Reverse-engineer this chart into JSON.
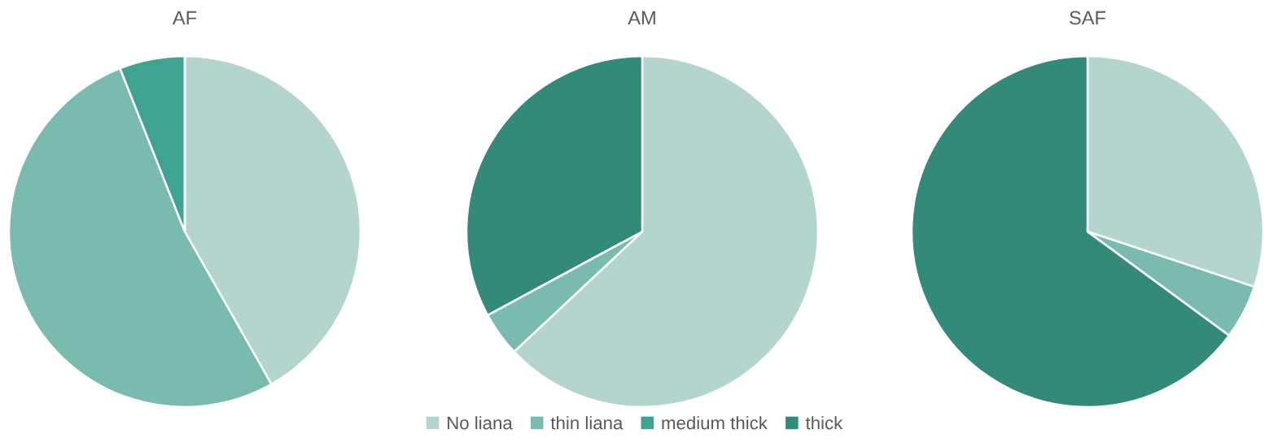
{
  "chart_data": [
    {
      "type": "pie",
      "title": "AF",
      "categories": [
        "No liana",
        "thin liana",
        "medium thick",
        "thick"
      ],
      "values": [
        41.8,
        52.2,
        6.0,
        0
      ],
      "colors": [
        "#b3d5ce",
        "#79bbae",
        "#3ea391",
        "#338a78"
      ],
      "legend": "bottom"
    },
    {
      "type": "pie",
      "title": "AM",
      "categories": [
        null,
        null,
        null,
        null
      ],
      "values": [
        63.0,
        4.1,
        0,
        32.9
      ],
      "colors": [
        "#b3d5ce",
        "#79bbae",
        "#3ea391",
        "#338a78"
      ]
    },
    {
      "type": "pie",
      "title": "SAF",
      "categories": [
        null,
        null,
        null,
        null
      ],
      "values": [
        30.1,
        5.0,
        0,
        64.9
      ],
      "colors": [
        "#b3d5ce",
        "#79bbae",
        "#3ea391",
        "#338a78"
      ]
    }
  ]
}
